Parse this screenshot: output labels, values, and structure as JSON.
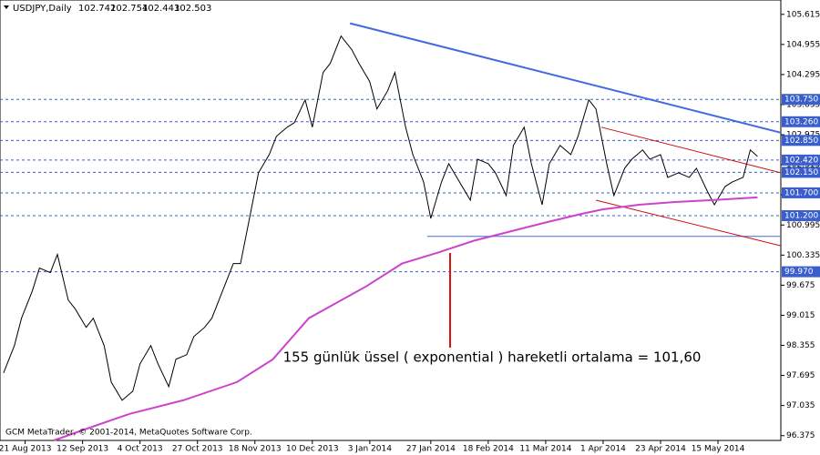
{
  "chart_data": {
    "type": "line",
    "symbol": "USDJPY,Daily",
    "ohlc": [
      102.742,
      102.754,
      102.443,
      102.503
    ],
    "footer": "GCM MetaTrader, © 2001-2014, MetaQuotes Software Corp.",
    "annotation": "155 günlük üssel ( exponential ) hareketli ortalama = 101,60",
    "xlim": [
      -1,
      216.5
    ],
    "ylim": [
      96.27,
      105.93
    ],
    "xticks": [
      {
        "value": 6,
        "label": "21 Aug 2013"
      },
      {
        "value": 22,
        "label": "12 Sep 2013"
      },
      {
        "value": 38,
        "label": "4 Oct 2013"
      },
      {
        "value": 54,
        "label": "27 Oct 2013"
      },
      {
        "value": 70,
        "label": "18 Nov 2013"
      },
      {
        "value": 86,
        "label": "10 Dec 2013"
      },
      {
        "value": 102,
        "label": "3 Jan 2014"
      },
      {
        "value": 119,
        "label": "27 Jan 2014"
      },
      {
        "value": 135,
        "label": "18 Feb 2014"
      },
      {
        "value": 151,
        "label": "11 Mar 2014"
      },
      {
        "value": 167,
        "label": "1 Apr 2014"
      },
      {
        "value": 183,
        "label": "23 Apr 2014"
      },
      {
        "value": 199,
        "label": "15 May 2014"
      }
    ],
    "yticks": [
      105.615,
      104.955,
      104.295,
      103.635,
      102.975,
      102.315,
      101.655,
      100.995,
      100.335,
      99.675,
      99.015,
      98.355,
      97.695,
      97.035,
      96.375
    ],
    "series": [
      {
        "color": "#000000",
        "x": [
          0,
          3,
          5,
          8,
          10,
          13,
          15,
          18,
          20,
          23,
          25,
          28,
          30,
          33,
          36,
          38,
          41,
          43,
          46,
          48,
          51,
          53,
          56,
          58,
          61,
          64,
          66,
          69,
          71,
          74,
          76,
          79,
          81,
          84,
          86,
          89,
          91,
          94,
          97,
          99,
          102,
          104,
          107,
          109,
          112,
          114,
          117,
          119,
          122,
          124,
          127,
          130,
          132,
          135,
          137,
          140,
          142,
          145,
          147,
          150,
          152,
          155,
          158,
          160,
          163,
          165,
          168,
          170,
          173,
          175,
          178,
          180,
          183,
          185,
          188,
          191,
          193,
          196,
          198,
          201,
          203,
          206,
          208,
          210
        ],
        "values": [
          97.75,
          98.35,
          98.95,
          99.55,
          100.05,
          99.95,
          100.35,
          99.35,
          99.15,
          98.75,
          98.95,
          98.35,
          97.55,
          97.15,
          97.35,
          97.95,
          98.35,
          97.95,
          97.45,
          98.05,
          98.15,
          98.55,
          98.75,
          98.95,
          99.55,
          100.15,
          100.15,
          101.34,
          102.14,
          102.54,
          102.94,
          103.14,
          103.24,
          103.74,
          103.14,
          104.34,
          104.54,
          105.14,
          104.84,
          104.54,
          104.14,
          103.54,
          103.94,
          104.34,
          103.14,
          102.54,
          101.94,
          101.14,
          101.94,
          102.34,
          101.94,
          101.54,
          102.44,
          102.34,
          102.14,
          101.64,
          102.74,
          103.14,
          102.34,
          101.44,
          102.34,
          102.74,
          102.54,
          102.94,
          103.74,
          103.54,
          102.34,
          101.64,
          102.24,
          102.44,
          102.64,
          102.44,
          102.54,
          102.04,
          102.14,
          102.04,
          102.24,
          101.74,
          101.44,
          101.84,
          101.94,
          102.04,
          102.64,
          102.5
        ]
      },
      {
        "color": "#cc44cc",
        "x": [
          14,
          24,
          35,
          50,
          65,
          75,
          85,
          101,
          111,
          121,
          131,
          141,
          151,
          161,
          167,
          177,
          187,
          197,
          210
        ],
        "values": [
          96.27,
          96.55,
          96.85,
          97.15,
          97.55,
          98.05,
          98.95,
          99.65,
          100.15,
          100.39,
          100.65,
          100.85,
          101.05,
          101.24,
          101.34,
          101.44,
          101.5,
          101.54,
          101.6
        ]
      }
    ],
    "levels": [
      {
        "value": 103.75,
        "label": "103.750"
      },
      {
        "value": 103.26,
        "label": "103.260"
      },
      {
        "value": 102.85,
        "label": "102.850"
      },
      {
        "value": 102.42,
        "label": "102.420"
      },
      {
        "value": 102.15,
        "label": "102.150"
      },
      {
        "value": 101.7,
        "label": "101.700"
      },
      {
        "value": 101.2,
        "label": "101.200"
      },
      {
        "value": 99.97,
        "label": "99.970"
      }
    ],
    "level_color": "#3a5fcd",
    "trendlines": [
      {
        "color": "#4169e1",
        "x": [
          96.5,
          216.5
        ],
        "values": [
          105.42,
          103.02
        ]
      },
      {
        "color": "#4169e1",
        "x": [
          118,
          216.5
        ],
        "values": [
          100.745,
          100.745
        ]
      },
      {
        "color": "#d01010",
        "x": [
          166.5,
          216.5
        ],
        "values": [
          103.14,
          102.14
        ]
      },
      {
        "color": "#d01010",
        "x": [
          165,
          216.5
        ],
        "values": [
          101.54,
          100.54
        ]
      }
    ]
  }
}
